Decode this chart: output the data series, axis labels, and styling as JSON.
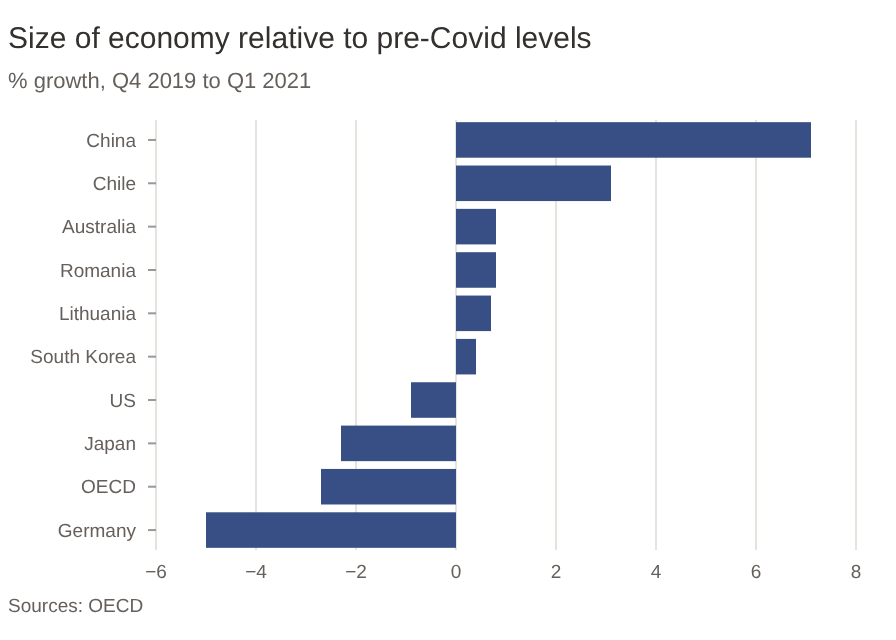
{
  "chart_data": {
    "type": "bar",
    "orientation": "horizontal",
    "title": "Size of economy relative to pre-Covid levels",
    "subtitle": "% growth, Q4 2019 to Q1 2021",
    "categories": [
      "China",
      "Chile",
      "Australia",
      "Romania",
      "Lithuania",
      "South Korea",
      "US",
      "Japan",
      "OECD",
      "Germany"
    ],
    "values": [
      7.1,
      3.1,
      0.8,
      0.8,
      0.7,
      0.4,
      -0.9,
      -2.3,
      -2.7,
      -5.0
    ],
    "color": "#374f85",
    "xlim": [
      -6,
      8
    ],
    "xticks": [
      -6,
      -4,
      -2,
      0,
      2,
      4,
      6,
      8
    ],
    "grid": "x",
    "annotations": [
      "Sources: OECD"
    ]
  }
}
